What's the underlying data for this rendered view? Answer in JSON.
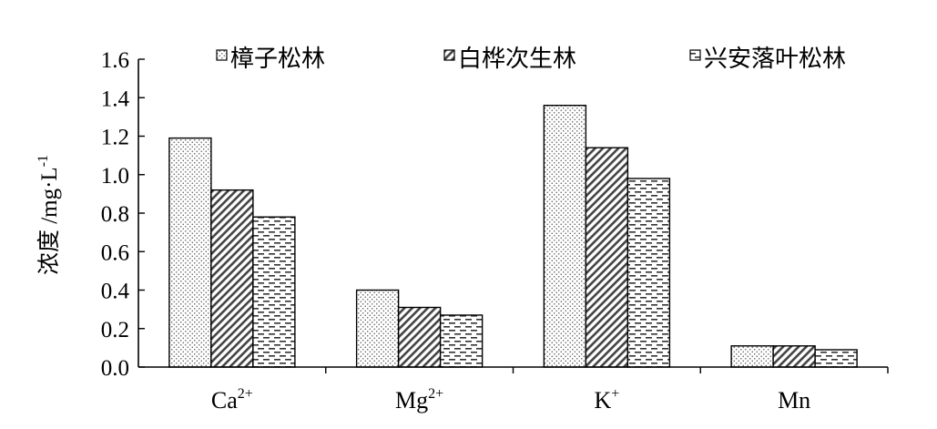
{
  "chart_data": {
    "type": "bar",
    "title": "",
    "xlabel": "",
    "ylabel": "浓度 /mg·L",
    "ylabel_superscript": "-1",
    "ylim": [
      0,
      1.6
    ],
    "yticks": [
      "0.0",
      "0.2",
      "0.4",
      "0.6",
      "0.8",
      "1.0",
      "1.2",
      "1.4",
      "1.6"
    ],
    "categories": [
      {
        "base": "Ca",
        "sup": "2+"
      },
      {
        "base": "Mg",
        "sup": "2+"
      },
      {
        "base": "K",
        "sup": "+"
      },
      {
        "base": "Mn",
        "sup": ""
      }
    ],
    "legend_position": "top",
    "series": [
      {
        "name": "樟子松林",
        "pattern": "dots",
        "values": [
          1.19,
          0.4,
          1.36,
          0.11
        ]
      },
      {
        "name": "白桦次生林",
        "pattern": "diagonal",
        "values": [
          0.92,
          0.31,
          1.14,
          0.11
        ]
      },
      {
        "name": "兴安落叶松林",
        "pattern": "dashes",
        "values": [
          0.78,
          0.27,
          0.98,
          0.09
        ]
      }
    ]
  }
}
